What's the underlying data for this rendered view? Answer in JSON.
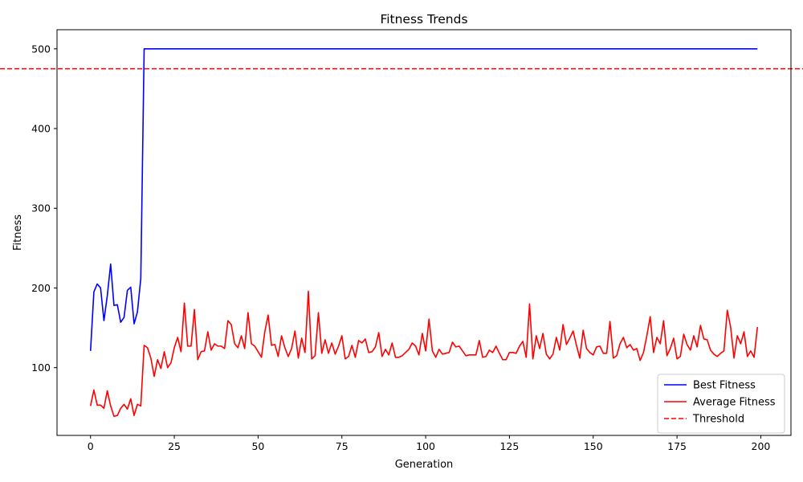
{
  "chart_data": {
    "type": "line",
    "title": "Fitness Trends",
    "xlabel": "Generation",
    "ylabel": "Fitness",
    "xlim": [
      -10,
      209
    ],
    "ylim": [
      15,
      524
    ],
    "xticks": [
      0,
      25,
      50,
      75,
      100,
      125,
      150,
      175,
      200
    ],
    "yticks": [
      100,
      200,
      300,
      400,
      500
    ],
    "grid": false,
    "legend_position": "lower right",
    "threshold": 475,
    "series": [
      {
        "name": "Best Fitness",
        "color": "#0000ff",
        "style": "solid",
        "x_start": 0,
        "values": [
          121,
          195,
          205,
          200,
          159,
          190,
          230,
          178,
          179,
          157,
          163,
          197,
          201,
          155,
          170,
          212,
          500,
          500,
          500,
          500,
          500,
          500,
          500,
          500,
          500,
          500,
          500,
          500,
          500,
          500,
          500,
          500,
          500,
          500,
          500,
          500,
          500,
          500,
          500,
          500,
          500,
          500,
          500,
          500,
          500,
          500,
          500,
          500,
          500,
          500,
          500,
          500,
          500,
          500,
          500,
          500,
          500,
          500,
          500,
          500,
          500,
          500,
          500,
          500,
          500,
          500,
          500,
          500,
          500,
          500,
          500,
          500,
          500,
          500,
          500,
          500,
          500,
          500,
          500,
          500,
          500,
          500,
          500,
          500,
          500,
          500,
          500,
          500,
          500,
          500,
          500,
          500,
          500,
          500,
          500,
          500,
          500,
          500,
          500,
          500,
          500,
          500,
          500,
          500,
          500,
          500,
          500,
          500,
          500,
          500,
          500,
          500,
          500,
          500,
          500,
          500,
          500,
          500,
          500,
          500,
          500,
          500,
          500,
          500,
          500,
          500,
          500,
          500,
          500,
          500,
          500,
          500,
          500,
          500,
          500,
          500,
          500,
          500,
          500,
          500,
          500,
          500,
          500,
          500,
          500,
          500,
          500,
          500,
          500,
          500,
          500,
          500,
          500,
          500,
          500,
          500,
          500,
          500,
          500,
          500,
          500,
          500,
          500,
          500,
          500,
          500,
          500,
          500,
          500,
          500,
          500,
          500,
          500,
          500,
          500,
          500,
          500,
          500,
          500,
          500,
          500,
          500,
          500,
          500,
          500,
          500,
          500,
          500,
          500,
          500,
          500,
          500,
          500,
          500,
          500,
          500,
          500,
          500,
          500,
          500
        ]
      },
      {
        "name": "Average Fitness",
        "color": "#ff0000",
        "style": "solid",
        "x_start": 0,
        "values": [
          52,
          72,
          53,
          53,
          49,
          71,
          52,
          39,
          40,
          49,
          54,
          48,
          61,
          40,
          54,
          52,
          128,
          125,
          112,
          89,
          110,
          99,
          120,
          100,
          106,
          125,
          138,
          120,
          181,
          127,
          127,
          173,
          110,
          120,
          121,
          145,
          122,
          130,
          127,
          127,
          124,
          159,
          154,
          130,
          125,
          140,
          124,
          169,
          130,
          127,
          120,
          113,
          145,
          166,
          128,
          129,
          114,
          140,
          125,
          114,
          124,
          146,
          112,
          137,
          119,
          196,
          111,
          115,
          169,
          118,
          135,
          118,
          131,
          117,
          127,
          140,
          111,
          114,
          128,
          113,
          134,
          131,
          136,
          119,
          120,
          126,
          144,
          114,
          123,
          116,
          131,
          113,
          113,
          115,
          119,
          123,
          131,
          127,
          116,
          143,
          121,
          161,
          121,
          113,
          123,
          117,
          118,
          119,
          132,
          126,
          127,
          121,
          115,
          116,
          116,
          116,
          134,
          113,
          114,
          122,
          119,
          127,
          118,
          110,
          110,
          119,
          119,
          118,
          127,
          133,
          113,
          180,
          111,
          140,
          124,
          143,
          117,
          111,
          117,
          138,
          122,
          154,
          129,
          137,
          146,
          128,
          112,
          147,
          124,
          119,
          116,
          126,
          127,
          118,
          118,
          158,
          112,
          115,
          130,
          138,
          125,
          129,
          122,
          124,
          109,
          119,
          140,
          164,
          119,
          138,
          130,
          159,
          115,
          124,
          137,
          111,
          114,
          142,
          129,
          122,
          140,
          126,
          153,
          136,
          135,
          122,
          117,
          114,
          118,
          121,
          172,
          151,
          112,
          140,
          130,
          145,
          114,
          121,
          113,
          151
        ]
      }
    ],
    "reference_lines": [
      {
        "name": "Threshold",
        "color": "#ff0000",
        "style": "dashed",
        "y": 475
      }
    ]
  }
}
